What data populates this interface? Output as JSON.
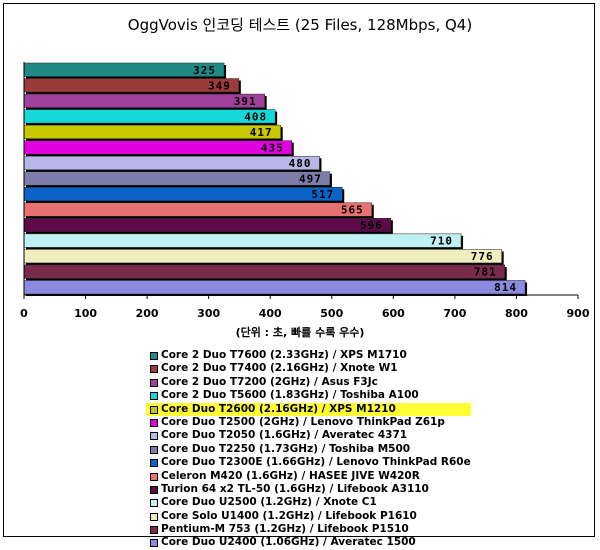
{
  "chart_data": {
    "type": "bar",
    "orientation": "horizontal",
    "title": "OggVovis 인코딩 테스트 (25 Files, 128Mbps, Q4)",
    "xlabel": "(단위 : 초, 빠를 수록 우수)",
    "xlim": [
      0,
      900
    ],
    "xticks": [
      0,
      100,
      200,
      300,
      400,
      500,
      600,
      700,
      800,
      900
    ],
    "grid": false,
    "legend_position": "bottom",
    "series": [
      {
        "name": "Core 2 Duo T7600 (2.33GHz) / XPS M1710",
        "value": 325,
        "color": "#1f8a86"
      },
      {
        "name": "Core 2 Duo T7400 (2.16GHz) / Xnote W1",
        "value": 349,
        "color": "#9b3b3b"
      },
      {
        "name": "Core 2 Duo T7200 (2GHz) / Asus F3Jc",
        "value": 391,
        "color": "#a0409a"
      },
      {
        "name": "Core 2 Duo T5600 (1.83GHz) / Toshiba A100",
        "value": 408,
        "color": "#15d9d9"
      },
      {
        "name": "Core Duo T2600 (2.16GHz) / XPS M1210",
        "value": 417,
        "color": "#c8c800",
        "highlight": true
      },
      {
        "name": "Core Duo T2500 (2GHz) / Lenovo ThinkPad Z61p",
        "value": 435,
        "color": "#e000e0"
      },
      {
        "name": "Core Duo T2050 (1.6GHz) / Averatec 4371",
        "value": 480,
        "color": "#b8b8e8"
      },
      {
        "name": "Core Duo T2250 (1.73GHz) / Toshiba M500",
        "value": 497,
        "color": "#7d7daa"
      },
      {
        "name": "Core Duo T2300E (1.66GHz) / Lenovo ThinkPad R60e",
        "value": 517,
        "color": "#0a64c8"
      },
      {
        "name": "Celeron M420 (1.6GHz) / HASEE JIVE W420R",
        "value": 565,
        "color": "#e87070"
      },
      {
        "name": "Turion 64 x2 TL-50 (1.6GHz) / Lifebook A3110",
        "value": 596,
        "color": "#5e0a4a"
      },
      {
        "name": "Core Duo U2500 (1.2GHz) / Xnote C1",
        "value": 710,
        "color": "#bff0f4"
      },
      {
        "name": "Core Solo U1400 (1.2GHz) / Lifebook P1610",
        "value": 776,
        "color": "#f0eec0"
      },
      {
        "name": "Pentium-M 753 (1.2GHz) / Lifebook P1510",
        "value": 781,
        "color": "#7a2a4a"
      },
      {
        "name": "Core Duo U2400 (1.06GHz) / Averatec 1500",
        "value": 814,
        "color": "#8a8ae0"
      }
    ]
  }
}
